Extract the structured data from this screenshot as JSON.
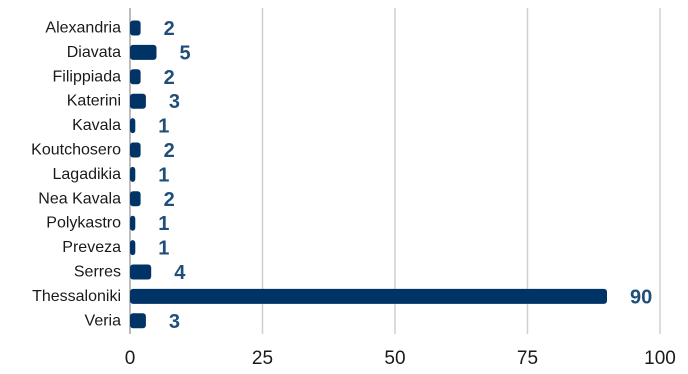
{
  "chart_data": {
    "type": "bar",
    "orientation": "horizontal",
    "categories": [
      "Alexandria",
      "Diavata",
      "Filippiada",
      "Katerini",
      "Kavala",
      "Koutchosero",
      "Lagadikia",
      "Nea Kavala",
      "Polykastro",
      "Preveza",
      "Serres",
      "Thessaloniki",
      "Veria"
    ],
    "values": [
      2,
      5,
      2,
      3,
      1,
      2,
      1,
      2,
      1,
      1,
      4,
      90,
      3
    ],
    "data_labels": [
      "2",
      "5",
      "2",
      "3",
      "1",
      "2",
      "1",
      "2",
      "1",
      "1",
      "4",
      "90",
      "3"
    ],
    "title": "",
    "xlabel": "",
    "ylabel": "",
    "xlim": [
      0,
      100
    ],
    "x_ticks": [
      0,
      25,
      50,
      75,
      100
    ],
    "x_tick_labels": [
      "0",
      "25",
      "50",
      "75",
      "100"
    ],
    "grid": "vertical",
    "legend": "none",
    "bar_color": "#003366",
    "label_color": "#1f4e79"
  }
}
